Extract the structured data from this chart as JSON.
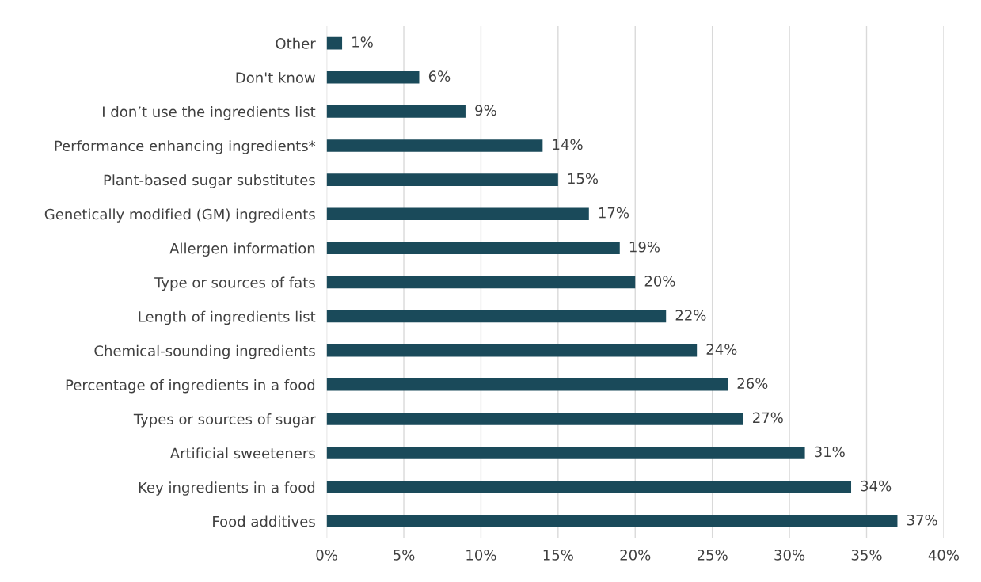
{
  "chart_data": {
    "type": "bar",
    "orientation": "horizontal",
    "categories": [
      "Other",
      "Don't know",
      "I don’t use the ingredients list",
      "Performance enhancing ingredients*",
      "Plant-based sugar substitutes",
      "Genetically modified (GM) ingredients",
      "Allergen information",
      "Type or sources of fats",
      "Length of ingredients list",
      "Chemical-sounding ingredients",
      "Percentage of ingredients in a food",
      "Types or sources of sugar",
      "Artificial sweeteners",
      "Key ingredients in a food",
      "Food additives"
    ],
    "values": [
      1,
      6,
      9,
      14,
      15,
      17,
      19,
      20,
      22,
      24,
      26,
      27,
      31,
      34,
      37
    ],
    "value_labels": [
      "1%",
      "6%",
      "9%",
      "14%",
      "15%",
      "17%",
      "19%",
      "20%",
      "22%",
      "24%",
      "26%",
      "27%",
      "31%",
      "34%",
      "37%"
    ],
    "color": "#1a4a5a",
    "xlim": [
      0,
      40
    ],
    "xticks": [
      {
        "value": 0,
        "label": "0%"
      },
      {
        "value": 5,
        "label": "5%"
      },
      {
        "value": 10,
        "label": "10%"
      },
      {
        "value": 15,
        "label": "15%"
      },
      {
        "value": 20,
        "label": "20%"
      },
      {
        "value": 25,
        "label": "25%"
      },
      {
        "value": 30,
        "label": "30%"
      },
      {
        "value": 35,
        "label": "35%"
      },
      {
        "value": 40,
        "label": "40%"
      }
    ],
    "grid": "x",
    "legend": false
  }
}
